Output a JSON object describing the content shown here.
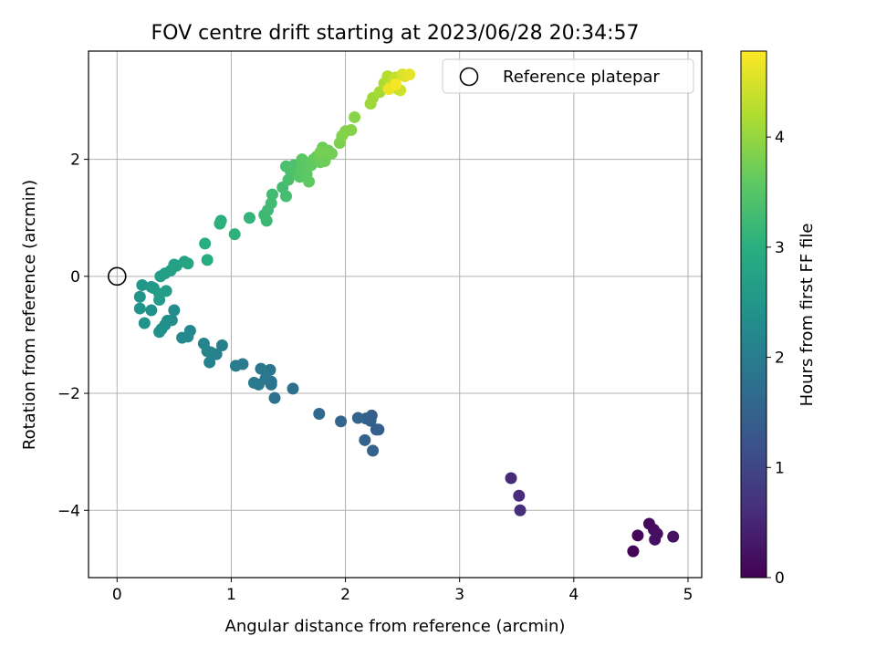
{
  "chart_data": {
    "type": "scatter",
    "title": "FOV centre drift starting at 2023/06/28 20:34:57",
    "xlabel": "Angular distance from reference (arcmin)",
    "ylabel": "Rotation from reference (arcmin)",
    "xlim": [
      -0.25,
      5.12
    ],
    "ylim": [
      -5.15,
      3.85
    ],
    "xticks": [
      0,
      1,
      2,
      3,
      4,
      5
    ],
    "yticks": [
      -4,
      -2,
      0,
      2
    ],
    "grid": true,
    "legend": {
      "position": "top-right",
      "entries": [
        "Reference platepar"
      ]
    },
    "reference_point": {
      "x": 0,
      "y": 0
    },
    "colorbar": {
      "label": "Hours from first FF file",
      "min": 0,
      "max": 4.78,
      "ticks": [
        0,
        1,
        2,
        3,
        4
      ],
      "colormap": "viridis"
    },
    "points": [
      [
        4.52,
        -4.7,
        0.05
      ],
      [
        4.56,
        -4.43,
        0.08
      ],
      [
        4.66,
        -4.23,
        0.12
      ],
      [
        4.7,
        -4.33,
        0.15
      ],
      [
        4.73,
        -4.4,
        0.18
      ],
      [
        4.71,
        -4.5,
        0.2
      ],
      [
        4.87,
        -4.45,
        0.22
      ],
      [
        3.45,
        -3.45,
        0.55
      ],
      [
        3.52,
        -3.75,
        0.6
      ],
      [
        3.53,
        -4.0,
        0.65
      ],
      [
        2.23,
        -2.38,
        1.4
      ],
      [
        2.27,
        -2.62,
        1.42
      ],
      [
        2.29,
        -2.62,
        1.44
      ],
      [
        2.18,
        -2.43,
        1.46
      ],
      [
        2.22,
        -2.47,
        1.48
      ],
      [
        2.24,
        -2.98,
        1.5
      ],
      [
        2.17,
        -2.8,
        1.52
      ],
      [
        2.11,
        -2.42,
        1.54
      ],
      [
        1.96,
        -2.48,
        1.56
      ],
      [
        1.77,
        -2.35,
        1.6
      ],
      [
        1.54,
        -1.92,
        1.75
      ],
      [
        1.38,
        -2.08,
        1.8
      ],
      [
        1.35,
        -1.8,
        1.82
      ],
      [
        1.35,
        -1.85,
        1.84
      ],
      [
        1.34,
        -1.6,
        1.86
      ],
      [
        1.3,
        -1.75,
        1.88
      ],
      [
        1.26,
        -1.58,
        1.9
      ],
      [
        1.24,
        -1.85,
        1.92
      ],
      [
        1.2,
        -1.82,
        1.94
      ],
      [
        1.1,
        -1.5,
        1.96
      ],
      [
        1.04,
        -1.53,
        1.98
      ],
      [
        0.92,
        -1.18,
        2.05
      ],
      [
        0.87,
        -1.33,
        2.08
      ],
      [
        0.82,
        -1.3,
        2.1
      ],
      [
        0.81,
        -1.47,
        2.12
      ],
      [
        0.79,
        -1.28,
        2.14
      ],
      [
        0.76,
        -1.15,
        2.16
      ],
      [
        0.64,
        -0.93,
        2.2
      ],
      [
        0.62,
        -1.03,
        2.22
      ],
      [
        0.57,
        -1.05,
        2.24
      ],
      [
        0.5,
        -0.58,
        2.3
      ],
      [
        0.48,
        -0.75,
        2.32
      ],
      [
        0.44,
        -0.76,
        2.34
      ],
      [
        0.42,
        -0.83,
        2.36
      ],
      [
        0.39,
        -0.9,
        2.38
      ],
      [
        0.37,
        -0.95,
        2.4
      ],
      [
        0.3,
        -0.58,
        2.42
      ],
      [
        0.24,
        -0.8,
        2.44
      ],
      [
        0.2,
        -0.55,
        2.46
      ],
      [
        0.2,
        -0.35,
        2.48
      ],
      [
        0.22,
        -0.15,
        2.5
      ],
      [
        0.3,
        -0.18,
        2.55
      ],
      [
        0.32,
        -0.2,
        2.57
      ],
      [
        0.37,
        -0.4,
        2.6
      ],
      [
        0.37,
        -0.3,
        2.62
      ],
      [
        0.43,
        -0.25,
        2.64
      ],
      [
        0.38,
        0.0,
        2.66
      ],
      [
        0.42,
        0.05,
        2.68
      ],
      [
        0.47,
        0.1,
        2.7
      ],
      [
        0.5,
        0.2,
        2.72
      ],
      [
        0.52,
        0.18,
        2.74
      ],
      [
        0.59,
        0.25,
        2.76
      ],
      [
        0.62,
        0.22,
        2.78
      ],
      [
        0.79,
        0.28,
        2.95
      ],
      [
        0.77,
        0.56,
        2.98
      ],
      [
        0.9,
        0.9,
        3.02
      ],
      [
        0.91,
        0.95,
        3.04
      ],
      [
        1.03,
        0.72,
        3.06
      ],
      [
        1.16,
        1.0,
        3.12
      ],
      [
        1.31,
        0.95,
        3.2
      ],
      [
        1.29,
        1.05,
        3.22
      ],
      [
        1.32,
        1.13,
        3.24
      ],
      [
        1.35,
        1.25,
        3.26
      ],
      [
        1.36,
        1.4,
        3.28
      ],
      [
        1.45,
        1.52,
        3.3
      ],
      [
        1.48,
        1.37,
        3.32
      ],
      [
        1.5,
        1.65,
        3.34
      ],
      [
        1.48,
        1.88,
        3.36
      ],
      [
        1.52,
        1.8,
        3.38
      ],
      [
        1.55,
        1.9,
        3.4
      ],
      [
        1.57,
        1.75,
        3.42
      ],
      [
        1.6,
        1.7,
        3.5
      ],
      [
        1.61,
        1.85,
        3.52
      ],
      [
        1.62,
        2.0,
        3.54
      ],
      [
        1.66,
        1.75,
        3.56
      ],
      [
        1.68,
        1.62,
        3.58
      ],
      [
        1.7,
        1.9,
        3.6
      ],
      [
        1.72,
        2.0,
        3.62
      ],
      [
        1.75,
        2.05,
        3.64
      ],
      [
        1.78,
        1.95,
        3.66
      ],
      [
        1.8,
        2.2,
        3.68
      ],
      [
        1.82,
        1.97,
        3.7
      ],
      [
        1.85,
        2.15,
        3.72
      ],
      [
        1.88,
        2.1,
        3.74
      ],
      [
        1.78,
        2.12,
        3.76
      ],
      [
        1.95,
        2.28,
        3.82
      ],
      [
        1.97,
        2.4,
        3.84
      ],
      [
        2.0,
        2.48,
        3.86
      ],
      [
        2.05,
        2.5,
        3.88
      ],
      [
        2.08,
        2.72,
        3.9
      ],
      [
        2.22,
        2.95,
        4.05
      ],
      [
        2.24,
        3.05,
        4.08
      ],
      [
        2.3,
        3.15,
        4.12
      ],
      [
        2.34,
        3.3,
        4.16
      ],
      [
        2.36,
        3.25,
        4.2
      ],
      [
        2.37,
        3.42,
        4.24
      ],
      [
        2.4,
        3.3,
        4.28
      ],
      [
        2.42,
        3.35,
        4.32
      ],
      [
        2.44,
        3.4,
        4.36
      ],
      [
        2.46,
        3.2,
        4.4
      ],
      [
        2.48,
        3.18,
        4.44
      ],
      [
        2.5,
        3.45,
        4.5
      ],
      [
        2.52,
        3.42,
        4.55
      ],
      [
        2.56,
        3.45,
        4.6
      ],
      [
        2.38,
        3.2,
        4.65
      ],
      [
        2.44,
        3.28,
        4.72
      ]
    ]
  }
}
